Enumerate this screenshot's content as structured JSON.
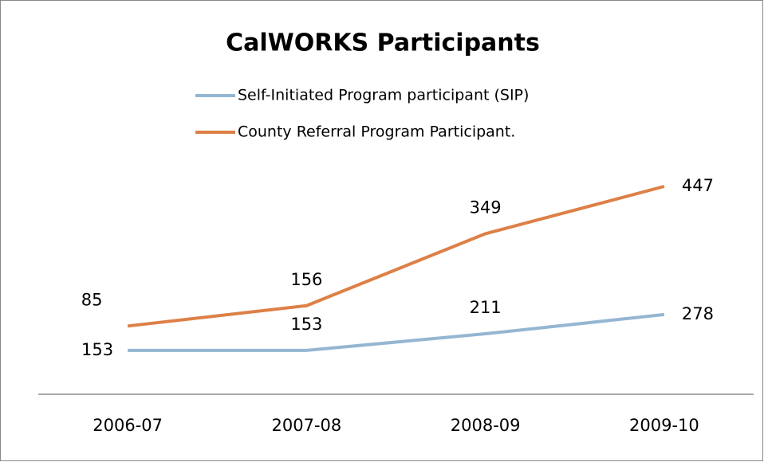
{
  "chart_data": {
    "type": "line",
    "stacked": true,
    "title": "CalWORKS  Participants",
    "categories": [
      "2006-07",
      "2007-08",
      "2008-09",
      "2009-10"
    ],
    "series": [
      {
        "name": "Self-Initiated Program participant (SIP)",
        "color": "#94b6d2",
        "values": [
          153,
          153,
          211,
          278
        ]
      },
      {
        "name": "County Referral Program Participant.",
        "color": "#dd8047",
        "values": [
          85,
          156,
          349,
          447
        ]
      }
    ],
    "ylim": [
      0,
      800
    ],
    "legend": "top"
  }
}
